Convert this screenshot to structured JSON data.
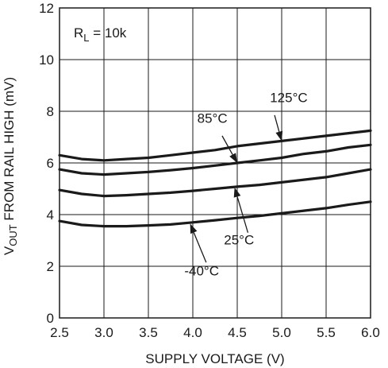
{
  "chart_data": {
    "type": "line",
    "xlabel": "SUPPLY VOLTAGE (V)",
    "ylabel_prefix": "V",
    "ylabel_sub": "OUT",
    "ylabel_rest": " FROM RAIL HIGH (mV)",
    "xlim": [
      2.5,
      6.0
    ],
    "ylim": [
      0,
      12
    ],
    "xticks": [
      "2.5",
      "3.0",
      "3.5",
      "4.0",
      "4.5",
      "5.0",
      "5.5",
      "6.0"
    ],
    "yticks": [
      "0",
      "2",
      "4",
      "6",
      "8",
      "10",
      "12"
    ],
    "grid": true,
    "condition": {
      "symbol": "R",
      "sub": "L",
      "rest": " = 10k"
    },
    "series": [
      {
        "name": "125°C",
        "x": [
          2.5,
          2.75,
          3.0,
          3.25,
          3.5,
          3.75,
          4.0,
          4.25,
          4.5,
          4.75,
          5.0,
          5.25,
          5.5,
          5.75,
          6.0
        ],
        "values": [
          6.3,
          6.15,
          6.1,
          6.15,
          6.2,
          6.3,
          6.4,
          6.5,
          6.65,
          6.75,
          6.85,
          6.95,
          7.05,
          7.15,
          7.25
        ]
      },
      {
        "name": "85°C",
        "x": [
          2.5,
          2.75,
          3.0,
          3.25,
          3.5,
          3.75,
          4.0,
          4.25,
          4.5,
          4.75,
          5.0,
          5.25,
          5.5,
          5.75,
          6.0
        ],
        "values": [
          5.75,
          5.6,
          5.55,
          5.6,
          5.65,
          5.72,
          5.8,
          5.9,
          6.0,
          6.1,
          6.2,
          6.35,
          6.45,
          6.6,
          6.7
        ]
      },
      {
        "name": "25°C",
        "x": [
          2.5,
          2.75,
          3.0,
          3.25,
          3.5,
          3.75,
          4.0,
          4.25,
          4.5,
          4.75,
          5.0,
          5.25,
          5.5,
          5.75,
          6.0
        ],
        "values": [
          4.95,
          4.8,
          4.72,
          4.75,
          4.8,
          4.85,
          4.92,
          5.0,
          5.08,
          5.15,
          5.25,
          5.35,
          5.45,
          5.6,
          5.75
        ]
      },
      {
        "name": "-40°C",
        "x": [
          2.5,
          2.75,
          3.0,
          3.25,
          3.5,
          3.75,
          4.0,
          4.25,
          4.5,
          4.75,
          5.0,
          5.25,
          5.5,
          5.75,
          6.0
        ],
        "values": [
          3.75,
          3.6,
          3.55,
          3.55,
          3.58,
          3.62,
          3.7,
          3.78,
          3.87,
          3.95,
          4.05,
          4.15,
          4.25,
          4.38,
          4.5
        ]
      }
    ],
    "labels": [
      {
        "series": 0,
        "text": "125°C",
        "text_at": [
          5.08,
          8.35
        ],
        "arrow_from": [
          4.92,
          7.85
        ],
        "arrow_to": [
          5.0,
          6.85
        ]
      },
      {
        "series": 1,
        "text": "85°C",
        "text_at": [
          4.22,
          7.55
        ],
        "arrow_from": [
          4.33,
          7.05
        ],
        "arrow_to": [
          4.5,
          6.0
        ]
      },
      {
        "series": 2,
        "text": "25°C",
        "text_at": [
          4.52,
          2.85
        ],
        "arrow_from": [
          4.62,
          3.3
        ],
        "arrow_to": [
          4.47,
          5.05
        ]
      },
      {
        "series": 3,
        "text": "-40°C",
        "text_at": [
          4.1,
          1.65
        ],
        "arrow_from": [
          4.15,
          2.15
        ],
        "arrow_to": [
          3.97,
          3.65
        ]
      }
    ]
  }
}
